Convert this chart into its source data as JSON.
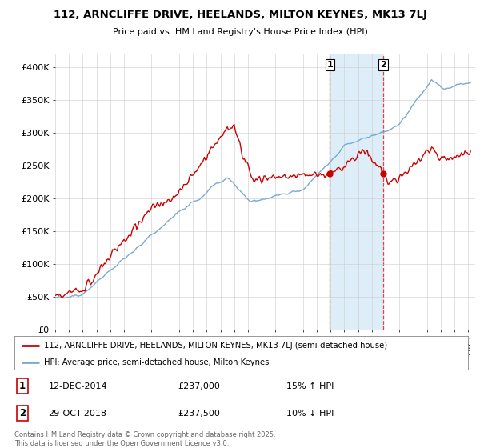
{
  "title": "112, ARNCLIFFE DRIVE, HEELANDS, MILTON KEYNES, MK13 7LJ",
  "subtitle": "Price paid vs. HM Land Registry's House Price Index (HPI)",
  "ylim": [
    0,
    420000
  ],
  "yticks": [
    0,
    50000,
    100000,
    150000,
    200000,
    250000,
    300000,
    350000,
    400000
  ],
  "red_line_color": "#cc0000",
  "blue_line_color": "#7aabcf",
  "blue_fill_color": "#ddeef8",
  "marker1_x": 2014.95,
  "marker2_x": 2018.83,
  "marker1_price": 237000,
  "marker2_price": 237500,
  "legend_label1": "112, ARNCLIFFE DRIVE, HEELANDS, MILTON KEYNES, MK13 7LJ (semi-detached house)",
  "legend_label2": "HPI: Average price, semi-detached house, Milton Keynes",
  "annotation1_date": "12-DEC-2014",
  "annotation1_price": "£237,000",
  "annotation1_hpi": "15% ↑ HPI",
  "annotation2_date": "29-OCT-2018",
  "annotation2_price": "£237,500",
  "annotation2_hpi": "10% ↓ HPI",
  "footer": "Contains HM Land Registry data © Crown copyright and database right 2025.\nThis data is licensed under the Open Government Licence v3.0.",
  "background_color": "#ffffff",
  "grid_color": "#cccccc"
}
